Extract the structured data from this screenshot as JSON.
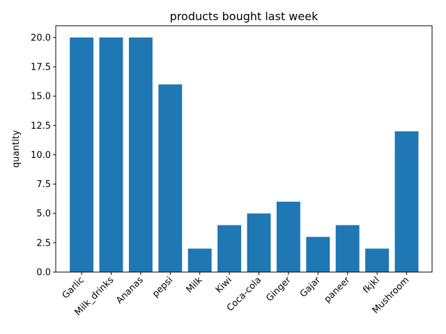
{
  "chart_data": {
    "type": "bar",
    "title": "products bought last week",
    "xlabel": "",
    "ylabel": "quantity",
    "categories": [
      "Garlic",
      "Milk_drinks",
      "Ananas",
      "pepsi",
      "Milk",
      "Kiwi",
      "Coca-cola",
      "Ginger",
      "Gajar",
      "paneer",
      "fkjkl",
      "Mushroom"
    ],
    "values": [
      20,
      20,
      20,
      16,
      2,
      4,
      5,
      6,
      3,
      4,
      2,
      12
    ],
    "ylim": [
      0,
      21
    ],
    "yticks": [
      "0.0",
      "2.5",
      "5.0",
      "7.5",
      "10.0",
      "12.5",
      "15.0",
      "17.5",
      "20.0"
    ],
    "grid": false,
    "bar_color": "#1f77b4"
  }
}
